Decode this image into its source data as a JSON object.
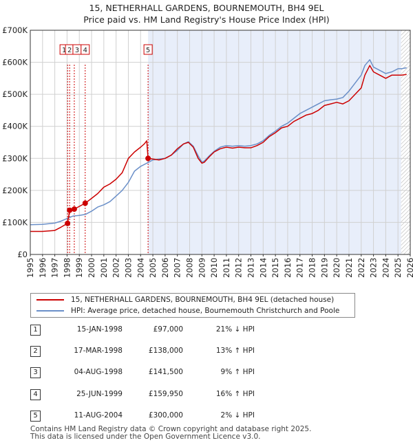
{
  "title": {
    "line1": "15, NETHERHALL GARDENS, BOURNEMOUTH, BH4 9EL",
    "line2": "Price paid vs. HM Land Registry's House Price Index (HPI)"
  },
  "colors": {
    "property": "#cc0000",
    "hpi": "#6a8fc8",
    "shade": "#e8eefa",
    "grid": "#d0d0d0"
  },
  "chart_data": {
    "type": "line",
    "xlim": [
      1995,
      2026
    ],
    "ylim": [
      0,
      700000
    ],
    "yticks": [
      {
        "value": 0,
        "label": "£0"
      },
      {
        "value": 100000,
        "label": "£100K"
      },
      {
        "value": 200000,
        "label": "£200K"
      },
      {
        "value": 300000,
        "label": "£300K"
      },
      {
        "value": 400000,
        "label": "£400K"
      },
      {
        "value": 500000,
        "label": "£500K"
      },
      {
        "value": 600000,
        "label": "£600K"
      },
      {
        "value": 700000,
        "label": "£700K"
      }
    ],
    "xticks": [
      "1995",
      "1996",
      "1997",
      "1998",
      "1999",
      "2000",
      "2001",
      "2002",
      "2003",
      "2004",
      "2005",
      "2006",
      "2007",
      "2008",
      "2009",
      "2010",
      "2011",
      "2012",
      "2013",
      "2014",
      "2015",
      "2016",
      "2017",
      "2018",
      "2019",
      "2020",
      "2021",
      "2022",
      "2023",
      "2024",
      "2025",
      "2026"
    ],
    "shaded_ranges": [
      [
        2004.61,
        2025.25
      ]
    ],
    "hatched_from": 2025.25,
    "series": [
      {
        "name": "15, NETHERHALL GARDENS, BOURNEMOUTH, BH4 9EL (detached house)",
        "x": [
          1995.0,
          1996.0,
          1997.0,
          1997.5,
          1998.04,
          1998.21,
          1998.59,
          1999.0,
          1999.48,
          2000.0,
          2000.5,
          2001.0,
          2001.5,
          2002.0,
          2002.5,
          2003.0,
          2003.5,
          2004.0,
          2004.3,
          2004.5,
          2004.61,
          2005.0,
          2005.5,
          2006.0,
          2006.5,
          2007.0,
          2007.5,
          2007.9,
          2008.3,
          2008.7,
          2009.0,
          2009.2,
          2009.6,
          2010.0,
          2010.5,
          2011.0,
          2011.5,
          2012.0,
          2012.5,
          2013.0,
          2013.5,
          2014.0,
          2014.5,
          2015.0,
          2015.5,
          2016.0,
          2016.5,
          2017.0,
          2017.5,
          2018.0,
          2018.5,
          2019.0,
          2019.5,
          2020.0,
          2020.5,
          2021.0,
          2021.5,
          2022.0,
          2022.3,
          2022.7,
          2023.0,
          2023.5,
          2024.0,
          2024.5,
          2025.0,
          2025.3,
          2025.7
        ],
        "values": [
          72000,
          72000,
          75000,
          85000,
          97000,
          138000,
          141500,
          150000,
          159950,
          175000,
          190000,
          210000,
          220000,
          235000,
          255000,
          300000,
          320000,
          335000,
          345000,
          355000,
          300000,
          298000,
          295000,
          300000,
          310000,
          330000,
          345000,
          350000,
          335000,
          300000,
          285000,
          288000,
          305000,
          320000,
          330000,
          335000,
          332000,
          335000,
          333000,
          333000,
          340000,
          350000,
          368000,
          380000,
          395000,
          400000,
          415000,
          425000,
          435000,
          440000,
          450000,
          465000,
          470000,
          475000,
          470000,
          480000,
          500000,
          520000,
          560000,
          590000,
          570000,
          560000,
          550000,
          560000,
          560000,
          560000,
          562000
        ]
      },
      {
        "name": "HPI: Average price, detached house, Bournemouth Christchurch and Poole",
        "x": [
          1995.0,
          1996.0,
          1997.0,
          1997.5,
          1998.0,
          1998.5,
          1999.0,
          1999.5,
          2000.0,
          2000.5,
          2001.0,
          2001.5,
          2002.0,
          2002.5,
          2003.0,
          2003.5,
          2004.0,
          2004.5,
          2005.0,
          2005.5,
          2006.0,
          2006.5,
          2007.0,
          2007.5,
          2007.9,
          2008.3,
          2008.7,
          2009.0,
          2009.2,
          2009.6,
          2010.0,
          2010.5,
          2011.0,
          2011.5,
          2012.0,
          2012.5,
          2013.0,
          2013.5,
          2014.0,
          2014.5,
          2015.0,
          2015.5,
          2016.0,
          2016.5,
          2017.0,
          2017.5,
          2018.0,
          2018.5,
          2019.0,
          2019.5,
          2020.0,
          2020.5,
          2021.0,
          2021.5,
          2022.0,
          2022.3,
          2022.7,
          2023.0,
          2023.5,
          2024.0,
          2024.5,
          2025.0,
          2025.3,
          2025.7
        ],
        "values": [
          93000,
          94000,
          98000,
          104000,
          112000,
          120000,
          122000,
          125000,
          135000,
          148000,
          155000,
          165000,
          182000,
          200000,
          225000,
          260000,
          275000,
          285000,
          295000,
          298000,
          300000,
          310000,
          325000,
          345000,
          352000,
          338000,
          308000,
          288000,
          292000,
          308000,
          322000,
          335000,
          340000,
          338000,
          340000,
          338000,
          340000,
          345000,
          355000,
          372000,
          385000,
          400000,
          410000,
          425000,
          440000,
          450000,
          460000,
          470000,
          480000,
          483000,
          485000,
          490000,
          510000,
          535000,
          560000,
          590000,
          608000,
          585000,
          575000,
          565000,
          570000,
          580000,
          580000,
          583000
        ]
      }
    ],
    "sales": [
      {
        "num": "1",
        "x": 1998.04,
        "y": 97000
      },
      {
        "num": "2",
        "x": 1998.21,
        "y": 138000
      },
      {
        "num": "3",
        "x": 1998.59,
        "y": 141500
      },
      {
        "num": "4",
        "x": 1999.48,
        "y": 159950
      },
      {
        "num": "5",
        "x": 2004.61,
        "y": 300000
      }
    ]
  },
  "legend": {
    "property": "15, NETHERHALL GARDENS, BOURNEMOUTH, BH4 9EL (detached house)",
    "hpi": "HPI: Average price, detached house, Bournemouth Christchurch and Poole"
  },
  "sales_table": [
    {
      "num": "1",
      "date": "15-JAN-1998",
      "price": "£97,000",
      "hpi": "21% ↓ HPI"
    },
    {
      "num": "2",
      "date": "17-MAR-1998",
      "price": "£138,000",
      "hpi": "13% ↑ HPI"
    },
    {
      "num": "3",
      "date": "04-AUG-1998",
      "price": "£141,500",
      "hpi": "9% ↑ HPI"
    },
    {
      "num": "4",
      "date": "25-JUN-1999",
      "price": "£159,950",
      "hpi": "16% ↑ HPI"
    },
    {
      "num": "5",
      "date": "11-AUG-2004",
      "price": "£300,000",
      "hpi": "2% ↓ HPI"
    }
  ],
  "footer": {
    "line1": "Contains HM Land Registry data © Crown copyright and database right 2025.",
    "line2": "This data is licensed under the Open Government Licence v3.0."
  }
}
